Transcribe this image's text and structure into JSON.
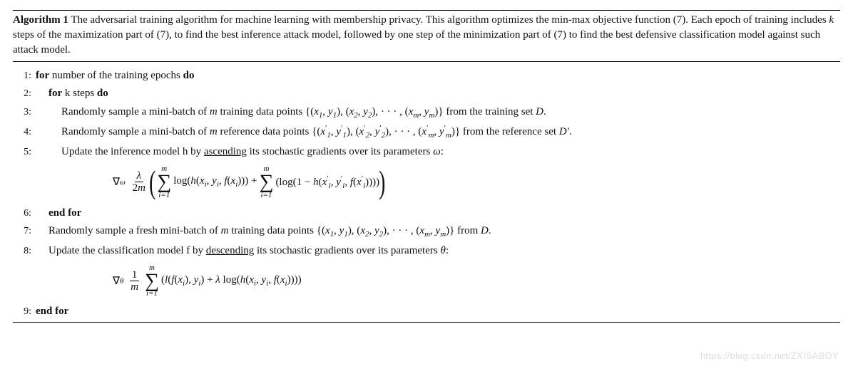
{
  "header": {
    "label": "Algorithm 1",
    "caption": "The adversarial training algorithm for machine learning with membership privacy. This algorithm optimizes the min-max objective function (7). Each epoch of training includes k steps of the maximization part of (7), to find the best inference attack model, followed by one step of the minimization part of (7) to find the best defensive classification model against such attack model."
  },
  "lines": {
    "n1": "1:",
    "n2": "2:",
    "n3": "3:",
    "n4": "4:",
    "n5": "5:",
    "n6": "6:",
    "n7": "7:",
    "n8": "8:",
    "n9": "9:",
    "l1a": "for",
    "l1b": " number of the training epochs ",
    "l1c": "do",
    "l2a": "for",
    "l2b": " k steps ",
    "l2c": "do",
    "l3": "Randomly sample a mini-batch of m training data points {(x₁, y₁), (x₂, y₂), · · · , (xₘ, yₘ)} from the training set D.",
    "l4": "Randomly sample a mini-batch of m reference data points {(x′₁, y′₁), (x′₂, y′₂), · · · , (x′ₘ, y′ₘ)} from the reference set D′.",
    "l5a": "Update the inference model h by ",
    "l5b": "ascending",
    "l5c": " its stochastic gradients over its parameters ω:",
    "l6": "end for",
    "l7": "Randomly sample a fresh mini-batch of m training data points {(x₁, y₁), (x₂, y₂), · · · , (xₘ, yₘ)} from D.",
    "l8a": "Update the classification model f by ",
    "l8b": "descending",
    "l8c": " its stochastic gradients over its parameters θ:",
    "l9": "end for"
  },
  "eq1": {
    "nabla": "∇",
    "sub": "ω",
    "frac_num": "λ",
    "frac_den": "2m",
    "sum_up": "m",
    "sum_lo": "i=1",
    "body1": " log(h(xᵢ, yᵢ, f(xᵢ))) + ",
    "body2": " (log(1 − h(x′ᵢ, y′ᵢ, f(x′ᵢ))))"
  },
  "eq2": {
    "nabla": "∇",
    "sub": "θ",
    "frac_num": "1",
    "frac_den": "m",
    "sum_up": "m",
    "sum_lo": "i=1",
    "body": " (l(f(xᵢ), yᵢ) + λ log(h(xᵢ, yᵢ, f(xᵢ))))"
  },
  "watermark": "https://blog.csdn.net/ZXISABOY"
}
